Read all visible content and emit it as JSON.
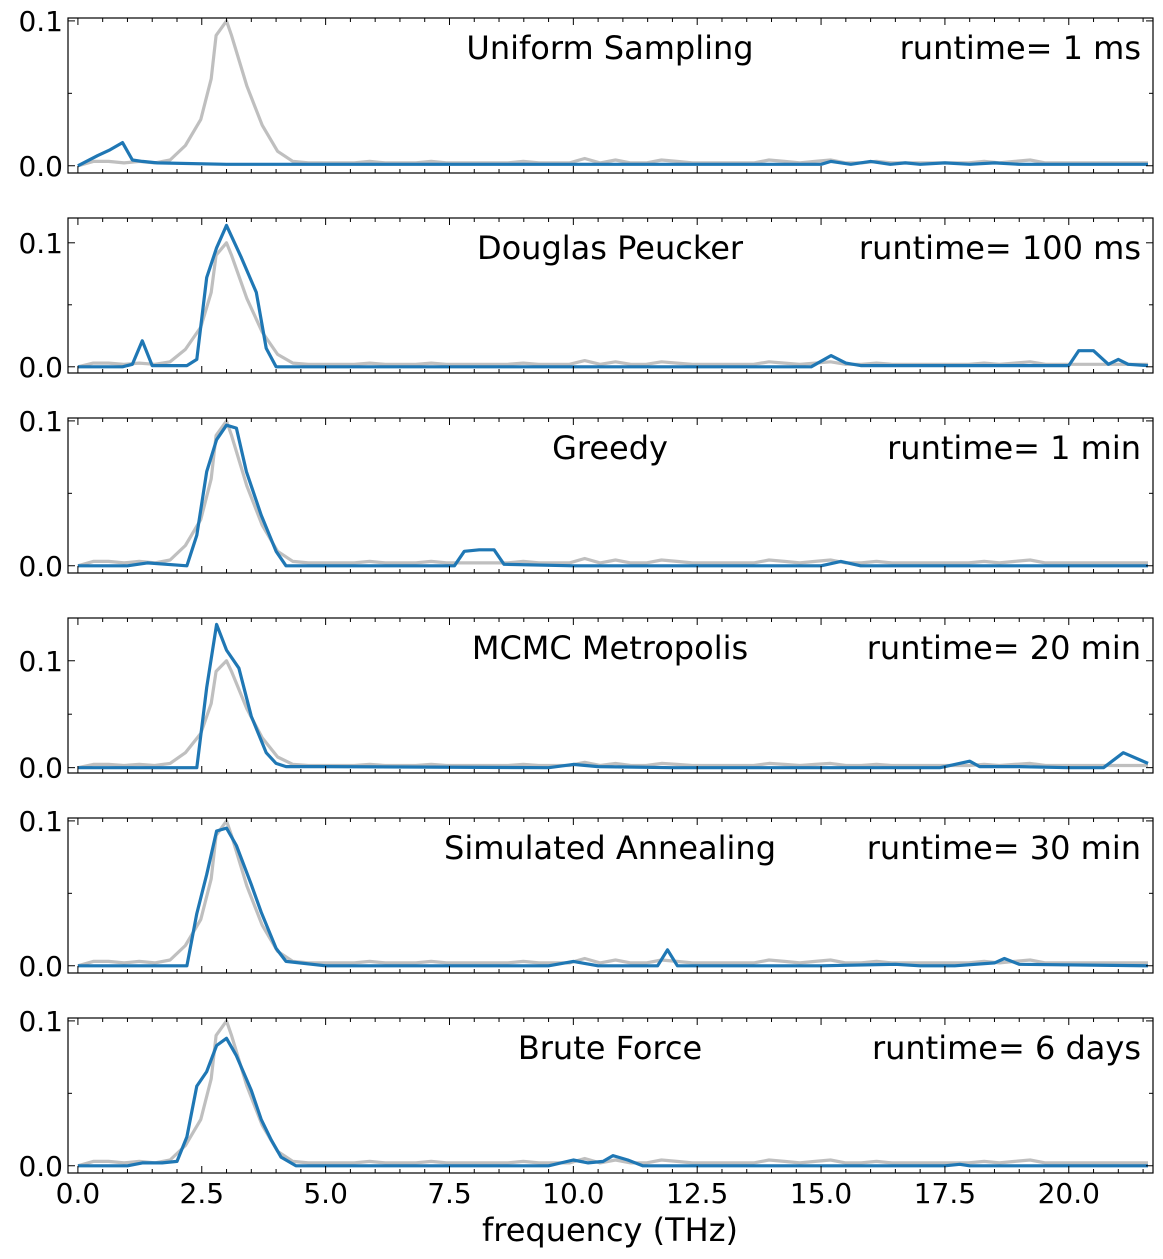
{
  "chart_data": {
    "type": "line",
    "xlabel": "frequency (THz)",
    "xlim": [
      -0.2,
      21.7
    ],
    "x_ticks": [
      0.0,
      2.5,
      5.0,
      7.5,
      10.0,
      12.5,
      15.0,
      17.5,
      20.0
    ],
    "x_tick_labels": [
      "0.0",
      "2.5",
      "5.0",
      "7.5",
      "10.0",
      "12.5",
      "15.0",
      "17.5",
      "20.0"
    ],
    "reference_series": {
      "color": "#bfbfbf",
      "x": [
        0.0,
        0.31,
        0.62,
        0.93,
        1.24,
        1.55,
        1.86,
        2.17,
        2.48,
        2.69,
        2.79,
        3.0,
        3.1,
        3.41,
        3.72,
        4.03,
        4.34,
        4.65,
        4.96,
        5.27,
        5.58,
        5.89,
        6.2,
        6.51,
        6.82,
        7.13,
        7.44,
        7.75,
        8.06,
        8.37,
        8.68,
        8.99,
        9.3,
        9.61,
        9.92,
        10.23,
        10.54,
        10.85,
        11.16,
        11.47,
        11.78,
        12.09,
        12.4,
        12.71,
        13.02,
        13.33,
        13.64,
        13.95,
        14.26,
        14.57,
        14.88,
        15.19,
        15.5,
        15.81,
        16.12,
        16.43,
        16.74,
        17.05,
        17.36,
        17.67,
        17.98,
        18.29,
        18.6,
        18.91,
        19.22,
        19.53,
        19.84,
        20.15,
        20.46,
        20.77,
        21.08,
        21.39,
        21.6
      ],
      "y": [
        0.0,
        0.003,
        0.003,
        0.002,
        0.003,
        0.002,
        0.004,
        0.014,
        0.032,
        0.06,
        0.09,
        0.1,
        0.09,
        0.055,
        0.028,
        0.01,
        0.003,
        0.002,
        0.002,
        0.002,
        0.002,
        0.003,
        0.002,
        0.002,
        0.002,
        0.003,
        0.002,
        0.002,
        0.002,
        0.002,
        0.002,
        0.003,
        0.002,
        0.002,
        0.002,
        0.005,
        0.002,
        0.004,
        0.002,
        0.002,
        0.004,
        0.003,
        0.002,
        0.002,
        0.002,
        0.002,
        0.002,
        0.004,
        0.003,
        0.002,
        0.003,
        0.004,
        0.002,
        0.002,
        0.003,
        0.002,
        0.002,
        0.002,
        0.002,
        0.002,
        0.002,
        0.003,
        0.002,
        0.003,
        0.004,
        0.002,
        0.002,
        0.002,
        0.002,
        0.002,
        0.002,
        0.002,
        0.002
      ]
    },
    "panels": [
      {
        "method": "Uniform Sampling",
        "runtime": "runtime= 1 ms",
        "ylim": [
          -0.005,
          0.102
        ],
        "y_ticks": [
          0.0,
          0.1
        ],
        "y_tick_labels": [
          "0.0",
          "0.1"
        ],
        "series": {
          "color": "#1f77b4",
          "x": [
            0.0,
            0.4,
            0.65,
            0.9,
            1.1,
            1.3,
            1.6,
            3.0,
            5.0,
            7.0,
            10.0,
            15.0,
            15.2,
            15.6,
            16.0,
            16.4,
            16.7,
            17.0,
            17.5,
            18.0,
            18.5,
            19.0,
            19.5,
            20.0,
            21.0,
            21.6
          ],
          "y": [
            0.0,
            0.007,
            0.011,
            0.016,
            0.004,
            0.003,
            0.002,
            0.001,
            0.001,
            0.001,
            0.001,
            0.001,
            0.003,
            0.001,
            0.003,
            0.001,
            0.002,
            0.001,
            0.002,
            0.001,
            0.002,
            0.001,
            0.001,
            0.001,
            0.001,
            0.001
          ]
        }
      },
      {
        "method": "Douglas Peucker",
        "runtime": "runtime= 100 ms",
        "ylim": [
          -0.005,
          0.12
        ],
        "y_ticks": [
          0.0,
          0.1
        ],
        "y_tick_labels": [
          "0.0",
          "0.1"
        ],
        "series": {
          "color": "#1f77b4",
          "x": [
            0.0,
            0.9,
            1.1,
            1.3,
            1.5,
            2.2,
            2.4,
            2.6,
            2.8,
            3.0,
            3.3,
            3.6,
            3.8,
            4.0,
            4.3,
            10.0,
            14.8,
            15.2,
            15.5,
            15.8,
            20.0,
            20.2,
            20.5,
            20.8,
            21.0,
            21.2,
            21.6
          ],
          "y": [
            0.0,
            0.0,
            0.002,
            0.021,
            0.001,
            0.001,
            0.006,
            0.072,
            0.096,
            0.114,
            0.088,
            0.06,
            0.015,
            0.0,
            0.0,
            0.0,
            0.0,
            0.009,
            0.003,
            0.001,
            0.001,
            0.013,
            0.013,
            0.002,
            0.006,
            0.002,
            0.001
          ]
        }
      },
      {
        "method": "Greedy",
        "runtime": "runtime= 1 min",
        "ylim": [
          -0.005,
          0.102
        ],
        "y_ticks": [
          0.0,
          0.1
        ],
        "y_tick_labels": [
          "0.0",
          "0.1"
        ],
        "series": {
          "color": "#1f77b4",
          "x": [
            0.0,
            1.0,
            1.4,
            2.2,
            2.4,
            2.6,
            2.8,
            3.0,
            3.2,
            3.4,
            3.7,
            4.0,
            4.2,
            4.5,
            7.6,
            7.8,
            8.1,
            8.4,
            8.6,
            10.0,
            15.0,
            15.4,
            15.8,
            21.6
          ],
          "y": [
            0.0,
            0.0,
            0.002,
            0.0,
            0.021,
            0.065,
            0.087,
            0.097,
            0.095,
            0.065,
            0.035,
            0.01,
            0.0,
            0.0,
            0.0,
            0.01,
            0.011,
            0.011,
            0.001,
            0.0,
            0.0,
            0.003,
            0.0,
            0.0
          ]
        }
      },
      {
        "method": "MCMC Metropolis",
        "runtime": "runtime= 20 min",
        "ylim": [
          -0.005,
          0.14
        ],
        "y_ticks": [
          0.0,
          0.1
        ],
        "y_tick_labels": [
          "0.0",
          "0.1"
        ],
        "series": {
          "color": "#1f77b4",
          "x": [
            0.0,
            2.4,
            2.6,
            2.8,
            3.0,
            3.25,
            3.5,
            3.8,
            4.0,
            4.2,
            5.0,
            9.5,
            10.0,
            10.5,
            12.0,
            17.4,
            18.0,
            18.2,
            19.0,
            20.0,
            20.7,
            21.1,
            21.6
          ],
          "y": [
            0.0,
            0.0,
            0.075,
            0.134,
            0.11,
            0.093,
            0.048,
            0.014,
            0.004,
            0.001,
            0.001,
            0.0,
            0.003,
            0.001,
            0.0,
            0.0,
            0.006,
            0.001,
            0.001,
            0.0,
            0.0,
            0.014,
            0.004
          ]
        }
      },
      {
        "method": "Simulated Annealing",
        "runtime": "runtime= 30 min",
        "ylim": [
          -0.005,
          0.102
        ],
        "y_ticks": [
          0.0,
          0.1
        ],
        "y_tick_labels": [
          "0.0",
          "0.1"
        ],
        "series": {
          "color": "#1f77b4",
          "x": [
            0.0,
            2.2,
            2.4,
            2.6,
            2.8,
            3.0,
            3.2,
            3.5,
            3.7,
            4.0,
            4.2,
            5.0,
            9.5,
            10.0,
            10.5,
            11.7,
            11.9,
            12.1,
            15.0,
            16.5,
            17.0,
            17.7,
            18.5,
            18.7,
            19.0,
            21.6
          ],
          "y": [
            0.0,
            0.0,
            0.036,
            0.063,
            0.093,
            0.095,
            0.083,
            0.056,
            0.037,
            0.012,
            0.003,
            0.0,
            0.0,
            0.003,
            0.0,
            0.0,
            0.011,
            0.0,
            0.0,
            0.001,
            0.0,
            0.0,
            0.002,
            0.005,
            0.001,
            0.0
          ]
        }
      },
      {
        "method": "Brute Force",
        "runtime": "runtime= 6 days",
        "ylim": [
          -0.005,
          0.102
        ],
        "y_ticks": [
          0.0,
          0.1
        ],
        "y_tick_labels": [
          "0.0",
          "0.1"
        ],
        "series": {
          "color": "#1f77b4",
          "x": [
            0.0,
            1.0,
            1.3,
            1.7,
            2.0,
            2.2,
            2.4,
            2.6,
            2.8,
            3.0,
            3.2,
            3.5,
            3.7,
            3.9,
            4.1,
            4.4,
            5.0,
            9.5,
            10.0,
            10.3,
            10.6,
            10.8,
            11.1,
            11.4,
            12.0,
            17.5,
            17.8,
            18.0,
            21.6
          ],
          "y": [
            0.0,
            0.0,
            0.002,
            0.002,
            0.003,
            0.02,
            0.055,
            0.065,
            0.083,
            0.088,
            0.076,
            0.052,
            0.032,
            0.018,
            0.006,
            0.0,
            0.0,
            0.0,
            0.004,
            0.002,
            0.003,
            0.007,
            0.004,
            0.0,
            0.0,
            0.0,
            0.001,
            0.0,
            0.0
          ]
        }
      }
    ]
  }
}
